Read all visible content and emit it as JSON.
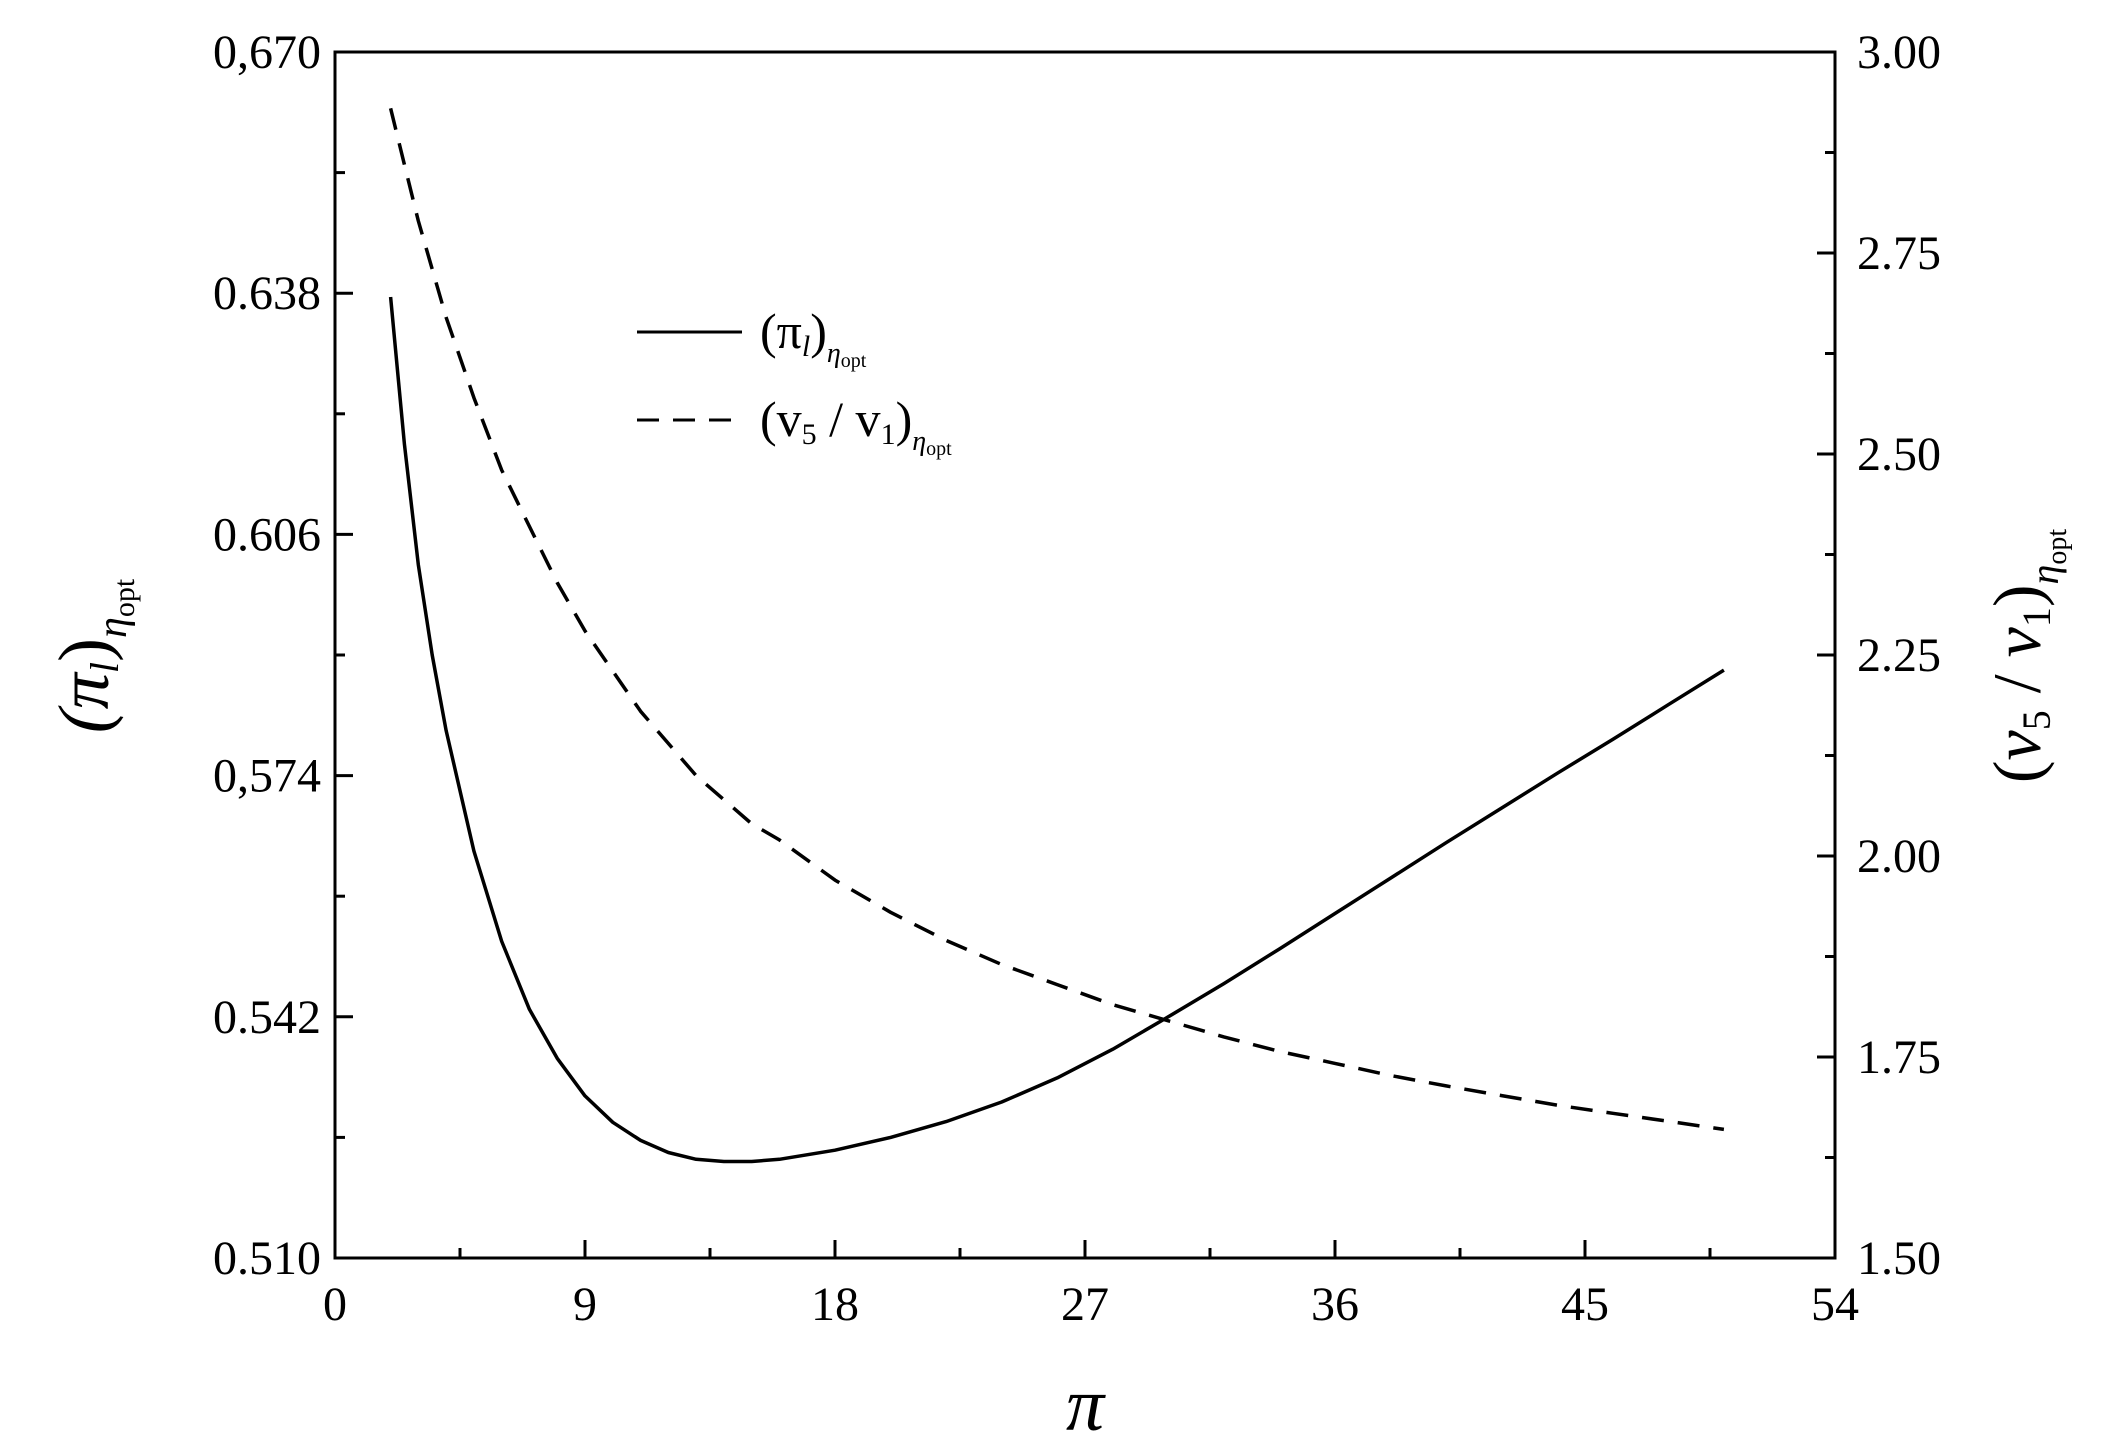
{
  "chart_data": {
    "type": "line",
    "x": [
      2,
      2.5,
      3,
      3.5,
      4,
      5,
      6,
      7,
      8,
      9,
      10,
      11,
      12,
      13,
      14,
      15,
      16,
      18,
      20,
      22,
      24,
      26,
      28,
      30,
      32,
      34,
      36,
      38,
      40,
      42,
      44,
      46,
      48,
      50
    ],
    "xlabel": "π",
    "xlim": [
      0,
      54
    ],
    "x_ticks": [
      "0",
      "9",
      "18",
      "27",
      "36",
      "45",
      "54"
    ],
    "x_tick_values": [
      0,
      9,
      18,
      27,
      36,
      45,
      54
    ],
    "series": [
      {
        "name": "(π_l)_η_opt",
        "axis": "left",
        "line_style": "solid",
        "values": [
          0.6375,
          0.618,
          0.602,
          0.59,
          0.58,
          0.564,
          0.552,
          0.543,
          0.5365,
          0.5315,
          0.528,
          0.5256,
          0.524,
          0.5231,
          0.5228,
          0.5228,
          0.5231,
          0.5243,
          0.526,
          0.5281,
          0.5307,
          0.5339,
          0.5377,
          0.542,
          0.5464,
          0.551,
          0.5557,
          0.5604,
          0.5651,
          0.5697,
          0.5743,
          0.5788,
          0.5834,
          0.588
        ]
      },
      {
        "name": "(v_5 / v_1)_η_opt",
        "axis": "right",
        "line_style": "dashed",
        "values": [
          2.93,
          2.86,
          2.79,
          2.73,
          2.67,
          2.57,
          2.48,
          2.41,
          2.34,
          2.28,
          2.23,
          2.18,
          2.14,
          2.1,
          2.07,
          2.04,
          2.02,
          1.97,
          1.93,
          1.895,
          1.865,
          1.84,
          1.815,
          1.795,
          1.775,
          1.757,
          1.742,
          1.727,
          1.714,
          1.702,
          1.69,
          1.68,
          1.67,
          1.66
        ]
      }
    ],
    "left_axis": {
      "label_main": "(π",
      "label_sub": "l",
      "label_close": ")",
      "label_subscript": "η",
      "label_subscript_sub": "opt",
      "ylim": [
        0.51,
        0.67
      ],
      "ticks": [
        "0.510",
        "0.542",
        "0,574",
        "0.606",
        "0.638",
        "0,670"
      ],
      "tick_values": [
        0.51,
        0.542,
        0.574,
        0.606,
        0.638,
        0.67
      ]
    },
    "right_axis": {
      "label_open": "(",
      "label_v5": "v",
      "label_v5_sub": "5",
      "label_slash": " / ",
      "label_v1": "v",
      "label_v1_sub": "1",
      "label_close": ")",
      "label_subscript": "η",
      "label_subscript_sub": "opt",
      "ylim": [
        1.5,
        3.0
      ],
      "ticks": [
        "1.50",
        "1.75",
        "2.00",
        "2.25",
        "2.50",
        "2.75",
        "3.00"
      ],
      "tick_values": [
        1.5,
        1.75,
        2.0,
        2.25,
        2.5,
        2.75,
        3.0
      ]
    },
    "legend": {
      "placement": "top-center",
      "entries": [
        {
          "main": "(π",
          "sub": "l",
          "close": ")",
          "subscript": "η",
          "subscript_sub": "opt"
        },
        {
          "open": "(v",
          "v5_sub": "5",
          "slash": " / v",
          "v1_sub": "1",
          "close": ")",
          "subscript": "η",
          "subscript_sub": "opt"
        }
      ]
    },
    "grid": false
  }
}
